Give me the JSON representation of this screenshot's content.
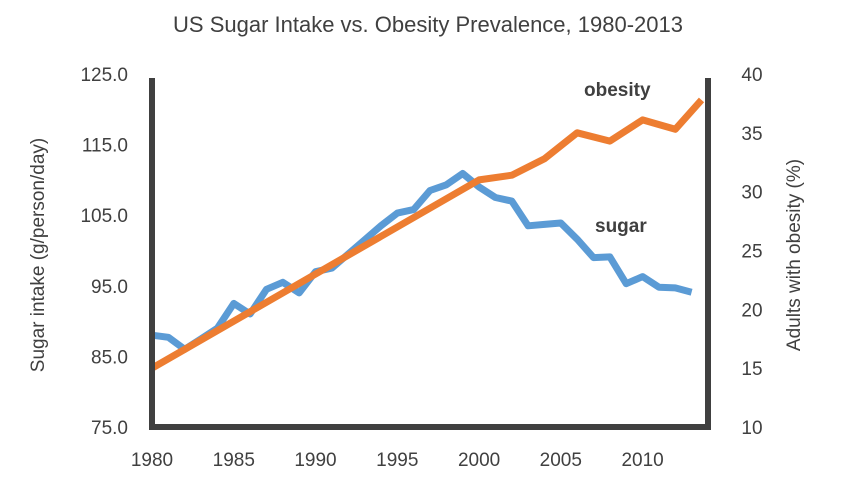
{
  "chart_data": {
    "type": "line",
    "title": "US Sugar Intake vs. Obesity Prevalence, 1980-2013",
    "xlabel": "",
    "x_ticks": [
      "1980",
      "1985",
      "1990",
      "1995",
      "2000",
      "2005",
      "2010"
    ],
    "xlim": [
      1980,
      2014
    ],
    "y_left": {
      "label": "Sugar intake (g/person/day)",
      "ticks": [
        "125.0",
        "115.0",
        "105.0",
        "95.0",
        "85.0",
        "75.0"
      ],
      "ylim": [
        75,
        125
      ]
    },
    "y_right": {
      "label": "Adults with obesity (%)",
      "ticks": [
        "40",
        "35",
        "30",
        "25",
        "20",
        "15",
        "10"
      ],
      "ylim": [
        10,
        40
      ]
    },
    "grid": false,
    "series": [
      {
        "name": "sugar",
        "axis": "left",
        "color": "#5b9bd5",
        "x": [
          1980,
          1981,
          1982,
          1983,
          1984,
          1985,
          1986,
          1987,
          1988,
          1989,
          1990,
          1991,
          1992,
          1993,
          1994,
          1995,
          1996,
          1997,
          1998,
          1999,
          2000,
          2001,
          2002,
          2003,
          2004,
          2005,
          2006,
          2007,
          2008,
          2009,
          2010,
          2011,
          2012,
          2013
        ],
        "values": [
          88.0,
          87.7,
          86.0,
          87.5,
          89.0,
          92.5,
          91.0,
          94.5,
          95.5,
          94.0,
          97.0,
          97.5,
          99.5,
          101.5,
          103.5,
          105.3,
          105.8,
          108.5,
          109.3,
          110.9,
          109.0,
          107.5,
          107.0,
          103.5,
          103.7,
          103.9,
          101.6,
          99.0,
          99.1,
          95.3,
          96.3,
          94.8,
          94.7,
          94.1
        ]
      },
      {
        "name": "obesity",
        "axis": "right",
        "color": "#ed7d31",
        "x": [
          1980,
          2000,
          2002,
          2004,
          2006,
          2008,
          2010,
          2012,
          2013.6
        ],
        "values": [
          15.0,
          31.0,
          31.4,
          32.8,
          35.0,
          34.3,
          36.1,
          35.3,
          37.8
        ]
      }
    ]
  }
}
